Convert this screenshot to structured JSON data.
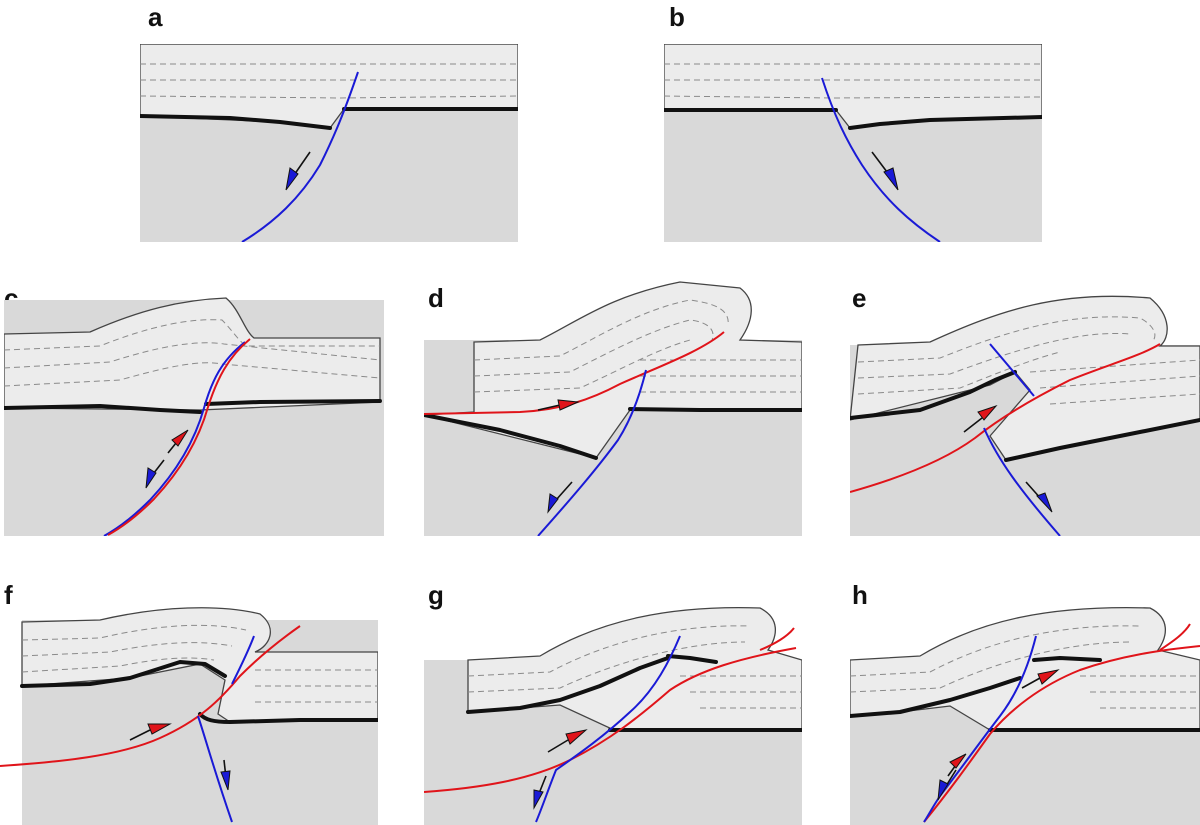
{
  "figure": {
    "panels": [
      {
        "id": "a",
        "label": "a"
      },
      {
        "id": "b",
        "label": "b"
      },
      {
        "id": "c",
        "label": "c"
      },
      {
        "id": "d",
        "label": "d"
      },
      {
        "id": "e",
        "label": "e"
      },
      {
        "id": "f",
        "label": "f"
      },
      {
        "id": "g",
        "label": "g"
      },
      {
        "id": "h",
        "label": "h"
      }
    ],
    "colors": {
      "normal_fault": "#1a1ad6",
      "thrust_fault": "#e0141a",
      "basement": "#d9d9d9",
      "cover": "#ececec",
      "horizon": "#111111"
    }
  }
}
